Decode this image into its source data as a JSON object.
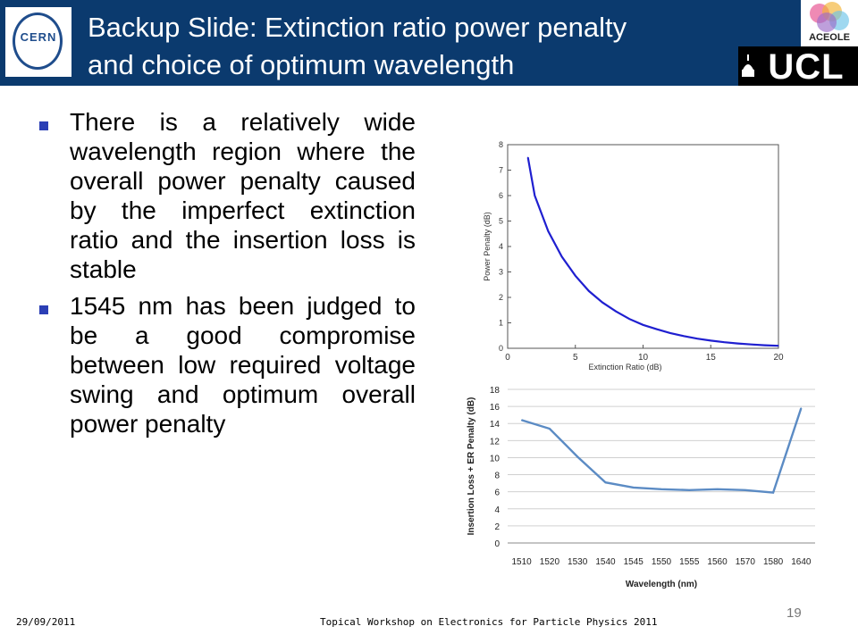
{
  "header": {
    "title_line1": "Backup Slide: Extinction ratio power penalty",
    "title_line2": "and choice of optimum wavelength",
    "cern_logo_text": "CERN",
    "aceole_logo_text": "ACEOLE",
    "ucl_logo_text": "UCL",
    "background_color": "#0b3a6e"
  },
  "bullets": [
    "There is a relatively wide wavelength region where the overall power penalty caused by the imperfect extinction ratio and the insertion loss is stable",
    "1545 nm has been judged to be a good compromise between low required voltage swing and optimum overall power penalty"
  ],
  "chart_data": [
    {
      "type": "line",
      "xlabel": "Extinction Ratio (dB)",
      "ylabel": "Power Penalty (dB)",
      "xlim": [
        0,
        20
      ],
      "ylim": [
        0,
        8
      ],
      "xticks": [
        "0",
        "5",
        "10",
        "15",
        "20"
      ],
      "yticks": [
        "0",
        "1",
        "2",
        "3",
        "4",
        "5",
        "6",
        "7",
        "8"
      ],
      "grid": false,
      "line_color": "#1f1fd0",
      "x": [
        1.5,
        2,
        3,
        4,
        5,
        6,
        7,
        8,
        9,
        10,
        11,
        12,
        13,
        14,
        15,
        16,
        17,
        18,
        19,
        20
      ],
      "y": [
        7.5,
        6.0,
        4.6,
        3.6,
        2.85,
        2.25,
        1.8,
        1.45,
        1.15,
        0.92,
        0.75,
        0.6,
        0.48,
        0.38,
        0.3,
        0.24,
        0.19,
        0.15,
        0.12,
        0.1
      ]
    },
    {
      "type": "line",
      "xlabel": "Wavelength (nm)",
      "ylabel": "Insertion Loss + ER Penalty (dB)",
      "ylim": [
        0,
        18
      ],
      "categories": [
        "1510",
        "1520",
        "1530",
        "1540",
        "1545",
        "1550",
        "1555",
        "1560",
        "1570",
        "1580",
        "1640"
      ],
      "yticks": [
        "0",
        "2",
        "4",
        "6",
        "8",
        "10",
        "12",
        "14",
        "16",
        "18"
      ],
      "grid": true,
      "line_color": "#5b8bc4",
      "values": [
        14.4,
        13.4,
        10.1,
        7.1,
        6.5,
        6.3,
        6.2,
        6.3,
        6.2,
        5.9,
        15.8
      ]
    }
  ],
  "footer": {
    "date": "29/09/2011",
    "event": "Topical Workshop on Electronics for Particle Physics 2011",
    "page_number": "19"
  }
}
